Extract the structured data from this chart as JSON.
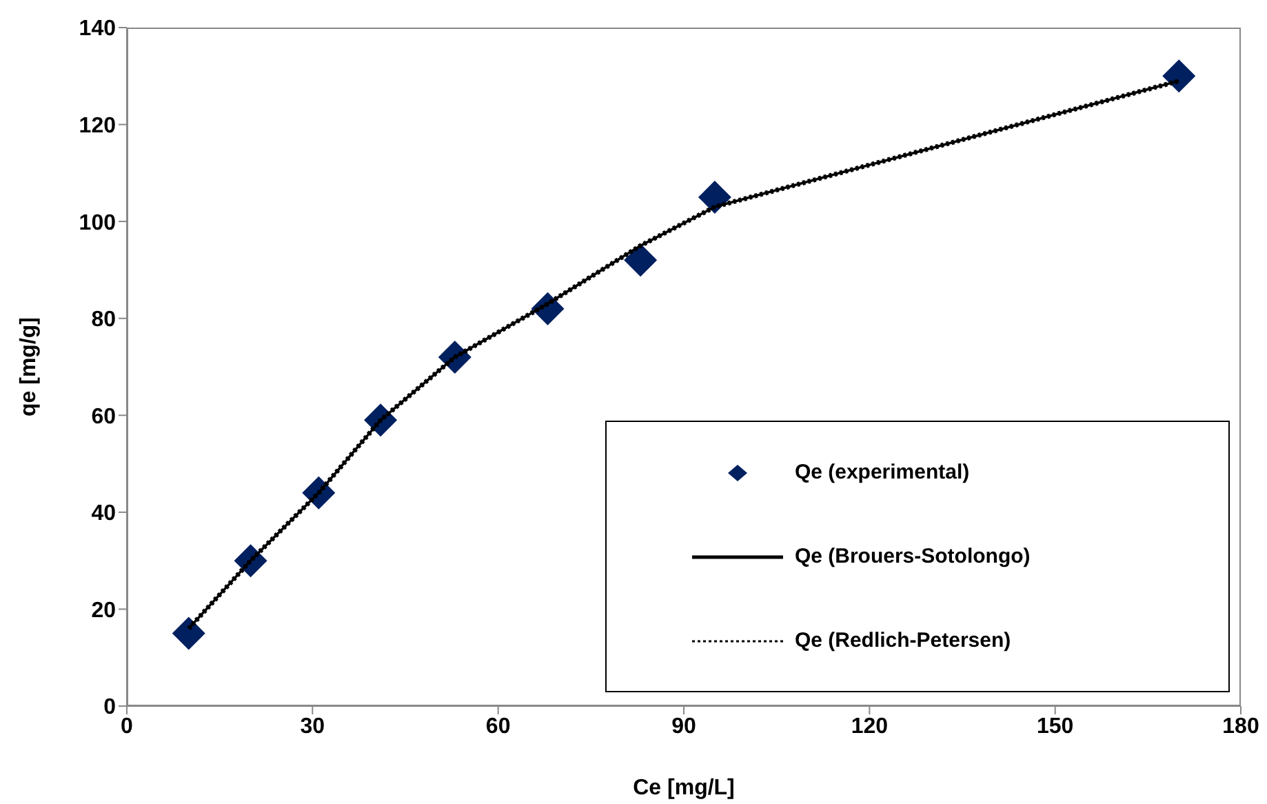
{
  "chart_data": {
    "type": "scatter",
    "xlabel": "Ce [mg/L]",
    "ylabel": "qe [mg/g]",
    "xlim": [
      0,
      180
    ],
    "xticks": [
      0,
      30,
      60,
      90,
      120,
      150,
      180
    ],
    "ylim": [
      0,
      140
    ],
    "yticks": [
      0,
      20,
      40,
      60,
      80,
      100,
      120,
      140
    ],
    "grid": false,
    "legend": "bottom right",
    "series": [
      {
        "name": "Qe (experimental)",
        "marker": "diamond",
        "color": "#002060",
        "x": [
          10,
          20,
          31,
          41,
          53,
          68,
          83,
          95,
          170
        ],
        "values": [
          15,
          30,
          44,
          59,
          72,
          82,
          92,
          105,
          130
        ]
      },
      {
        "name": "Qe (Brouers-Sotolongo)",
        "type": "line",
        "marker": "none",
        "line_style": "solid",
        "color": "#000000",
        "x": [
          10,
          20,
          31,
          41,
          53,
          68,
          83,
          95,
          170
        ],
        "values": [
          16,
          30,
          44,
          59,
          72,
          83,
          95,
          103,
          129
        ]
      },
      {
        "name": "Qe (Redlich-Petersen)",
        "type": "line",
        "marker": "none",
        "line_style": "dotted",
        "color": "#000000",
        "x": [
          10,
          20,
          31,
          41,
          53,
          68,
          83,
          95,
          170
        ],
        "values": [
          16,
          30,
          44,
          59,
          72,
          83,
          95,
          103,
          129
        ]
      }
    ]
  }
}
